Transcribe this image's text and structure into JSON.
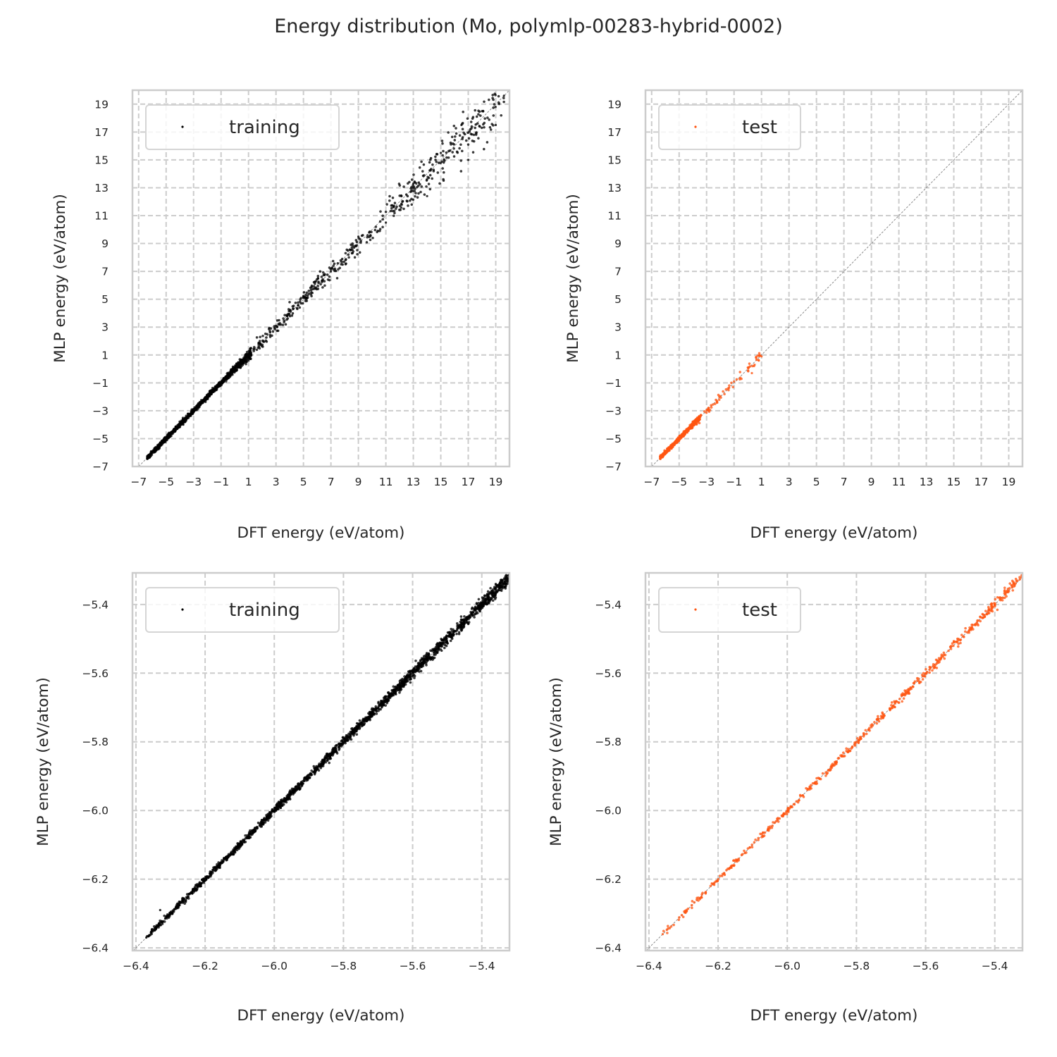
{
  "figure": {
    "title": "Energy distribution (Mo, polymlp-00283-hybrid-0002)"
  },
  "colors": {
    "training": "#000000",
    "test": "#ff5512",
    "grid": "#cccccc",
    "spine": "#cccccc",
    "diagonal": "#808080"
  },
  "chart_data": [
    {
      "id": "top-left",
      "type": "scatter",
      "title": "",
      "xlabel": "DFT energy (eV/atom)",
      "ylabel": "MLP energy (eV/atom)",
      "xlim": [
        -7.45,
        20.0
      ],
      "ylim": [
        -7.0,
        20.0
      ],
      "xticks": [
        "−7",
        "−5",
        "−3",
        "−1",
        "1",
        "3",
        "5",
        "7",
        "9",
        "11",
        "13",
        "15",
        "17",
        "19"
      ],
      "yticks": [
        "−7",
        "−5",
        "−3",
        "−1",
        "1",
        "3",
        "5",
        "7",
        "9",
        "11",
        "13",
        "15",
        "17",
        "19"
      ],
      "xtick_values": [
        -7,
        -5,
        -3,
        -1,
        1,
        3,
        5,
        7,
        9,
        11,
        13,
        15,
        17,
        19
      ],
      "ytick_values": [
        -7,
        -5,
        -3,
        -1,
        1,
        3,
        5,
        7,
        9,
        11,
        13,
        15,
        17,
        19
      ],
      "grid": true,
      "diagonal": true,
      "legend": {
        "label": "training",
        "position": "top-left"
      },
      "series": [
        {
          "name": "training",
          "color_key": "training",
          "description": "dense points along y=x from about -6.4 to 19.6; tight below 1 eV/atom, scatter widening above",
          "data_range": [
            -6.38,
            19.6
          ],
          "spread_low": 0.08,
          "spread_high": 0.9,
          "sample_points": [
            [
              -6.38,
              -6.36
            ],
            [
              -5.0,
              -5.0
            ],
            [
              -3.0,
              -2.98
            ],
            [
              -1.0,
              -0.95
            ],
            [
              0.5,
              0.2
            ],
            [
              1.0,
              0.6
            ],
            [
              3.0,
              3.1
            ],
            [
              5.0,
              5.2
            ],
            [
              7.0,
              7.0
            ],
            [
              9.0,
              9.5
            ],
            [
              11.0,
              10.5
            ],
            [
              13.0,
              13.3
            ],
            [
              14.0,
              12.4
            ],
            [
              15.0,
              15.5
            ],
            [
              16.5,
              17.5
            ],
            [
              17.0,
              15.0
            ],
            [
              18.0,
              18.5
            ],
            [
              19.0,
              17.5
            ],
            [
              19.6,
              19.6
            ]
          ]
        }
      ]
    },
    {
      "id": "top-right",
      "type": "scatter",
      "title": "",
      "xlabel": "DFT energy (eV/atom)",
      "ylabel": "MLP energy (eV/atom)",
      "xlim": [
        -7.45,
        20.0
      ],
      "ylim": [
        -7.0,
        20.0
      ],
      "xticks": [
        "−7",
        "−5",
        "−3",
        "−1",
        "1",
        "3",
        "5",
        "7",
        "9",
        "11",
        "13",
        "15",
        "17",
        "19"
      ],
      "yticks": [
        "−7",
        "−5",
        "−3",
        "−1",
        "1",
        "3",
        "5",
        "7",
        "9",
        "11",
        "13",
        "15",
        "17",
        "19"
      ],
      "xtick_values": [
        -7,
        -5,
        -3,
        -1,
        1,
        3,
        5,
        7,
        9,
        11,
        13,
        15,
        17,
        19
      ],
      "ytick_values": [
        -7,
        -5,
        -3,
        -1,
        1,
        3,
        5,
        7,
        9,
        11,
        13,
        15,
        17,
        19
      ],
      "grid": true,
      "diagonal": true,
      "legend": {
        "label": "test",
        "position": "top-left"
      },
      "series": [
        {
          "name": "test",
          "color_key": "test",
          "description": "points along y=x from about -6.4 to 1.0",
          "data_range": [
            -6.38,
            1.0
          ],
          "spread_low": 0.06,
          "spread_high": 0.25,
          "sample_points": [
            [
              -6.38,
              -6.36
            ],
            [
              -5.0,
              -5.0
            ],
            [
              -3.5,
              -3.45
            ],
            [
              -3.0,
              -2.95
            ],
            [
              -2.0,
              -1.95
            ],
            [
              -1.0,
              -0.9
            ],
            [
              0.0,
              0.1
            ],
            [
              0.5,
              0.3
            ],
            [
              0.8,
              0.6
            ],
            [
              1.0,
              0.9
            ],
            [
              0.3,
              -0.3
            ]
          ]
        }
      ]
    },
    {
      "id": "bottom-left",
      "type": "scatter",
      "title": "",
      "xlabel": "DFT energy (eV/atom)",
      "ylabel": "MLP energy (eV/atom)",
      "xlim": [
        -6.41,
        -5.32
      ],
      "ylim": [
        -6.408,
        -5.308
      ],
      "xticks": [
        "−6.4",
        "−6.2",
        "−6.0",
        "−5.8",
        "−5.6",
        "−5.4"
      ],
      "yticks": [
        "−6.4",
        "−6.2",
        "−6.0",
        "−5.8",
        "−5.6",
        "−5.4"
      ],
      "xtick_values": [
        -6.4,
        -6.2,
        -6.0,
        -5.8,
        -5.6,
        -5.4
      ],
      "ytick_values": [
        -6.4,
        -6.2,
        -6.0,
        -5.8,
        -5.6,
        -5.4
      ],
      "grid": true,
      "diagonal": true,
      "legend": {
        "label": "training",
        "position": "top-left"
      },
      "series": [
        {
          "name": "training",
          "color_key": "training",
          "description": "dense band along y=x from about -6.37 to -5.32",
          "data_range": [
            -6.37,
            -5.32
          ],
          "spread_low": 0.004,
          "spread_high": 0.01,
          "sample_points": [
            [
              -6.37,
              -6.37
            ],
            [
              -6.33,
              -6.29
            ],
            [
              -6.2,
              -6.2
            ],
            [
              -6.0,
              -6.0
            ],
            [
              -5.8,
              -5.8
            ],
            [
              -5.6,
              -5.6
            ],
            [
              -5.4,
              -5.4
            ],
            [
              -5.32,
              -5.32
            ]
          ]
        }
      ]
    },
    {
      "id": "bottom-right",
      "type": "scatter",
      "title": "",
      "xlabel": "DFT energy (eV/atom)",
      "ylabel": "MLP energy (eV/atom)",
      "xlim": [
        -6.41,
        -5.32
      ],
      "ylim": [
        -6.408,
        -5.308
      ],
      "xticks": [
        "−6.4",
        "−6.2",
        "−6.0",
        "−5.8",
        "−5.6",
        "−5.4"
      ],
      "yticks": [
        "−6.4",
        "−6.2",
        "−6.0",
        "−5.8",
        "−5.6",
        "−5.4"
      ],
      "xtick_values": [
        -6.4,
        -6.2,
        -6.0,
        -5.8,
        -5.6,
        -5.4
      ],
      "ytick_values": [
        -6.4,
        -6.2,
        -6.0,
        -5.8,
        -5.6,
        -5.4
      ],
      "grid": true,
      "diagonal": true,
      "legend": {
        "label": "test",
        "position": "top-left"
      },
      "series": [
        {
          "name": "test",
          "color_key": "test",
          "description": "band along y=x from about -6.36 to -5.32",
          "data_range": [
            -6.36,
            -5.32
          ],
          "spread_low": 0.004,
          "spread_high": 0.008,
          "sample_points": [
            [
              -6.36,
              -6.36
            ],
            [
              -6.2,
              -6.2
            ],
            [
              -6.0,
              -6.0
            ],
            [
              -5.8,
              -5.8
            ],
            [
              -5.6,
              -5.6
            ],
            [
              -5.4,
              -5.4
            ],
            [
              -5.32,
              -5.32
            ]
          ]
        }
      ]
    }
  ]
}
